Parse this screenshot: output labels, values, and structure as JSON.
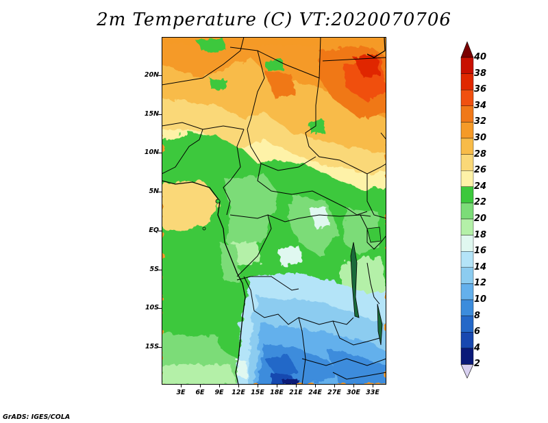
{
  "title": "2m Temperature (C) VT:2020070706",
  "footer": "GrADS: IGES/COLA",
  "lat_labels": [
    "20N",
    "15N",
    "10N",
    "5N",
    "EQ",
    "5S",
    "10S",
    "15S"
  ],
  "lon_labels": [
    "3E",
    "6E",
    "9E",
    "12E",
    "15E",
    "18E",
    "21E",
    "24E",
    "27E",
    "30E",
    "33E"
  ],
  "colorbar": {
    "labels": [
      "40",
      "38",
      "36",
      "34",
      "32",
      "30",
      "28",
      "26",
      "24",
      "22",
      "20",
      "18",
      "16",
      "14",
      "12",
      "10",
      "8",
      "6",
      "4",
      "2"
    ],
    "colors": [
      "#a00000",
      "#c81000",
      "#e02800",
      "#f05010",
      "#f07818",
      "#f59a28",
      "#f8bb48",
      "#fad878",
      "#fef2a8",
      "#3cc83c",
      "#7cdc78",
      "#b4f0a8",
      "#e0f8f0",
      "#b4e4f8",
      "#8cccf0",
      "#64b0ec",
      "#3c8cdc",
      "#2468c8",
      "#1848b0",
      "#0a1a78"
    ],
    "top_arrow_color": "#7a0000",
    "bottom_arrow_color": "#d8d0f0"
  }
}
